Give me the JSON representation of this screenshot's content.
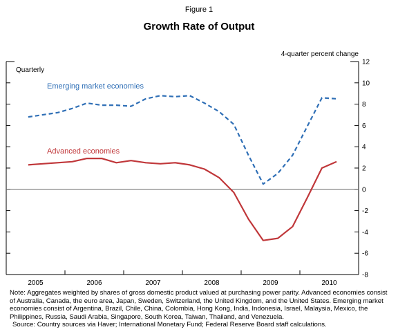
{
  "figure_label": "Figure 1",
  "notes": {
    "note": "Note: Aggregates weighted by shares of gross domestic product valued at purchasing power parity.  Advanced economies consist of Australia, Canada, the euro area, Japan, Sweden, Switzerland, the United Kingdom, and the United States.  Emerging market economies consist of Argentina, Brazil, Chile, China, Colombia, Hong Kong, India, Indonesia, Israel, Malaysia, Mexico, the Philippines, Russia, Saudi Arabia, Singapore, South Korea, Taiwan, Thailand, and Venezuela.",
    "source": "Source: Country sources via Haver; International Monetary Fund; Federal Reserve Board staff calculations."
  },
  "chart_data": {
    "type": "line",
    "title": "Growth Rate of Output",
    "frequency_label": "Quarterly",
    "ylabel": "4-quarter percent change",
    "ylim": [
      -8,
      12
    ],
    "yticks": [
      -8,
      -6,
      -4,
      -2,
      0,
      2,
      4,
      6,
      8,
      10,
      12
    ],
    "y_axis_side": "right",
    "xlim": [
      2004.5,
      2010.5
    ],
    "x_year_labels": [
      "2005",
      "2006",
      "2007",
      "2008",
      "2009",
      "2010"
    ],
    "zero_line": true,
    "grid": false,
    "x": [
      "2004Q4",
      "2005Q1",
      "2005Q2",
      "2005Q3",
      "2005Q4",
      "2006Q1",
      "2006Q2",
      "2006Q3",
      "2006Q4",
      "2007Q1",
      "2007Q2",
      "2007Q3",
      "2007Q4",
      "2008Q1",
      "2008Q2",
      "2008Q3",
      "2008Q4",
      "2009Q1",
      "2009Q2",
      "2009Q3",
      "2009Q4",
      "2010Q1"
    ],
    "series": [
      {
        "name": "Emerging market economies",
        "color": "#2f6fb6",
        "style": "dashed",
        "values": [
          6.8,
          7.0,
          7.2,
          7.6,
          8.1,
          7.9,
          7.9,
          7.8,
          8.5,
          8.8,
          8.7,
          8.8,
          8.1,
          7.3,
          6.1,
          3.2,
          0.5,
          1.5,
          3.2,
          5.9,
          8.6,
          8.5
        ]
      },
      {
        "name": "Advanced economies",
        "color": "#c0373a",
        "style": "solid",
        "values": [
          2.3,
          2.4,
          2.5,
          2.6,
          2.9,
          2.9,
          2.5,
          2.7,
          2.5,
          2.4,
          2.5,
          2.3,
          1.9,
          1.1,
          -0.3,
          -2.8,
          -4.8,
          -4.6,
          -3.5,
          -0.8,
          2.0,
          2.6
        ]
      }
    ]
  }
}
